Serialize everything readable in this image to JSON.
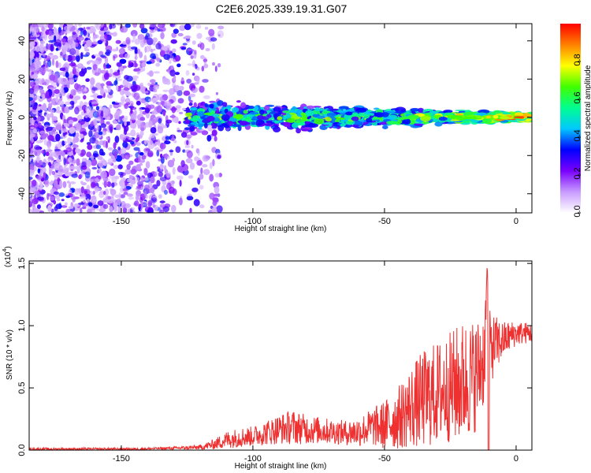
{
  "title": "C2E6.2025.339.19.31.G07",
  "chart_data": [
    {
      "type": "heatmap",
      "name": "spectrogram",
      "xlabel": "Height of straight line (km)",
      "ylabel": "Frequency (Hz)",
      "xlim": [
        -185,
        6
      ],
      "ylim": [
        -50,
        49
      ],
      "xticks": [
        -150,
        -100,
        -50,
        0
      ],
      "xtick_labels": [
        "-150",
        "-100",
        "-50",
        "0"
      ],
      "yticks": [
        -40,
        -20,
        0,
        20,
        40
      ],
      "ytick_labels": [
        "-40",
        "-20",
        "0",
        "20",
        "40"
      ],
      "colorbar": {
        "label": "Normalized spectral amplitude",
        "range": [
          0,
          1
        ],
        "ticks": [
          0,
          0.2,
          0.4,
          0.6,
          0.8
        ],
        "tick_labels": [
          "0.0",
          "0.2",
          "0.4",
          "0.6",
          "0.8"
        ],
        "colormap": [
          "#ffffff",
          "#c89bff",
          "#7a00ff",
          "#0000ff",
          "#00c8ff",
          "#00ff90",
          "#40ff00",
          "#ffff00",
          "#ff8000",
          "#ff0000"
        ]
      },
      "features": {
        "noise_region_height_km": [
          -185,
          -120
        ],
        "signal_band_start_km": -125,
        "signal_band_center_hz": 0,
        "signal_band_halfwidth_hz": 8
      }
    },
    {
      "type": "line",
      "name": "snr",
      "xlabel": "Height of straight line (km)",
      "ylabel": "SNR (10 * v/v)",
      "scale_label": "(x10",
      "scale_exponent": "4",
      "xlim": [
        -185,
        6
      ],
      "ylim": [
        0,
        1.52
      ],
      "xticks": [
        -150,
        -100,
        -50,
        0
      ],
      "xtick_labels": [
        "-150",
        "-100",
        "-50",
        "0"
      ],
      "yticks": [
        0,
        0.5,
        1.0,
        1.5
      ],
      "ytick_labels": [
        "0.0",
        "0.5",
        "1.0",
        "1.5"
      ],
      "series": [
        {
          "name": "SNR",
          "color": "#ee3030",
          "x": [
            -185,
            -175,
            -165,
            -155,
            -145,
            -135,
            -125,
            -120,
            -115,
            -110,
            -105,
            -100,
            -95,
            -90,
            -85,
            -80,
            -75,
            -70,
            -65,
            -60,
            -55,
            -50,
            -45,
            -40,
            -35,
            -30,
            -25,
            -20,
            -15,
            -12,
            -11,
            -10,
            -5,
            0,
            6
          ],
          "y": [
            0.01,
            0.01,
            0.01,
            0.01,
            0.01,
            0.015,
            0.02,
            0.025,
            0.05,
            0.09,
            0.11,
            0.12,
            0.15,
            0.18,
            0.2,
            0.18,
            0.17,
            0.16,
            0.15,
            0.16,
            0.2,
            0.22,
            0.28,
            0.38,
            0.45,
            0.5,
            0.55,
            0.6,
            0.65,
            0.8,
            1.5,
            0.85,
            0.9,
            0.95,
            0.95
          ],
          "fluct_amp": [
            0.01,
            0.01,
            0.01,
            0.01,
            0.01,
            0.01,
            0.015,
            0.02,
            0.04,
            0.07,
            0.08,
            0.08,
            0.1,
            0.12,
            0.14,
            0.12,
            0.11,
            0.1,
            0.1,
            0.12,
            0.15,
            0.2,
            0.25,
            0.33,
            0.4,
            0.42,
            0.45,
            0.5,
            0.45,
            0.4,
            0,
            0.3,
            0.15,
            0.1,
            0.08
          ]
        }
      ]
    }
  ]
}
